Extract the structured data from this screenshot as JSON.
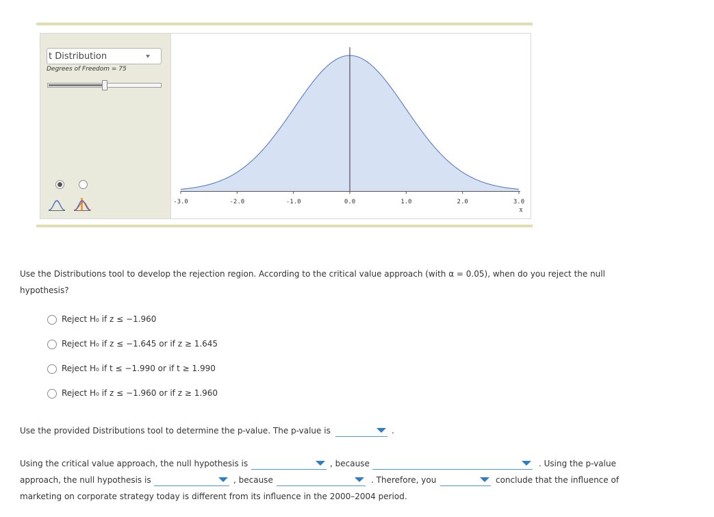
{
  "tool": {
    "dropdown_value": "t Distribution",
    "dof_label": "Degrees of Freedom = 75",
    "slider_level": 0.5,
    "mode_selected": 0,
    "colors": {
      "curve_fill": "#d6e1f3",
      "curve_line": "#4b72c4",
      "panel_bg": "#eaeadc",
      "rule": "#e2dcb2"
    },
    "icons": [
      "single-curve-icon",
      "two-tails-curve-icon"
    ]
  },
  "chart_data": {
    "type": "area",
    "distribution": "t",
    "degrees_of_freedom": 75,
    "xlim": [
      -3.0,
      3.0
    ],
    "ticks": [
      "-3.0",
      "-2.0",
      "-1.0",
      "0.0",
      "1.0",
      "2.0",
      "3.0"
    ],
    "xlabel": "x",
    "center_line_x": 0.0
  },
  "question1": {
    "text_line1": "Use the Distributions tool to develop the rejection region. According to the critical value approach (with α = 0.05), when do you reject the null",
    "text_line2": "hypothesis?",
    "options": [
      "Reject H₀ if z ≤ −1.960",
      "Reject H₀ if z ≤ −1.645 or if z ≥ 1.645",
      "Reject H₀ if t ≤ −1.990 or if t ≥ 1.990",
      "Reject H₀ if z ≤ −1.960 or if z ≥ 1.960"
    ]
  },
  "question2": {
    "text": "Use the provided Distributions tool to determine the p-value. The p-value is",
    "end": "."
  },
  "question3": {
    "l1_a": "Using the critical value approach, the null hypothesis is",
    "l1_b": ", because",
    "l1_c": ". Using the p-value",
    "l2_a": "approach, the null hypothesis is",
    "l2_b": ", because",
    "l2_c": ". Therefore, you",
    "l2_d": "conclude that the influence of",
    "l3": "marketing on corporate strategy today is different from its influence in the 2000–2004 period."
  }
}
